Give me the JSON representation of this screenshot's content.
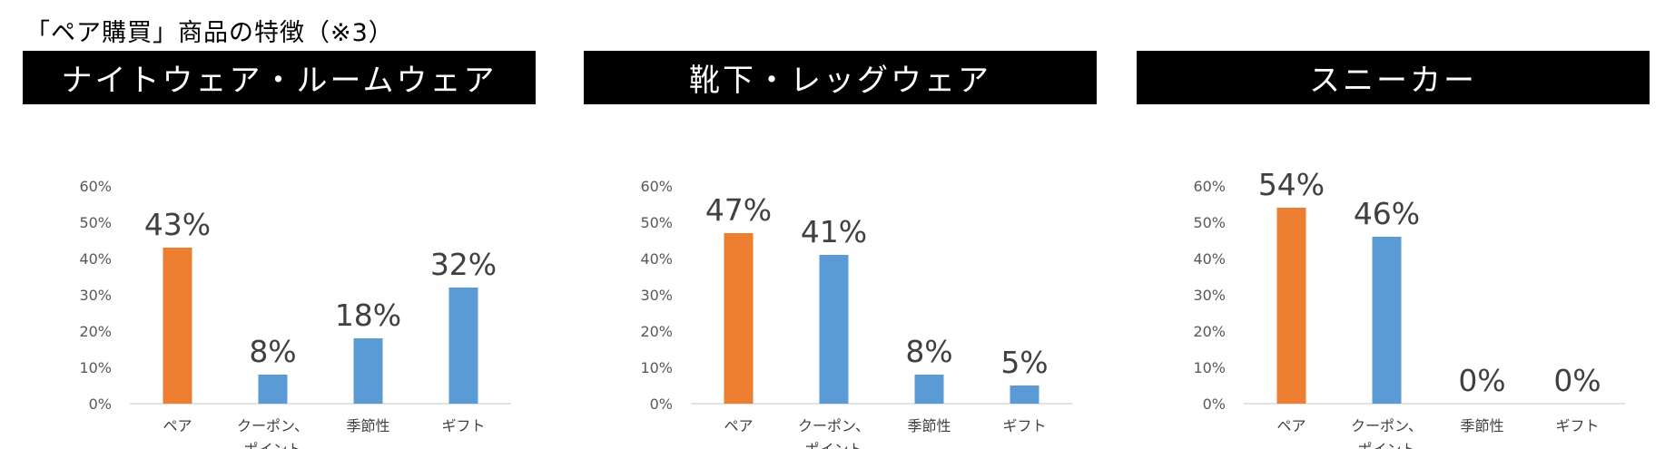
{
  "page_title": "「ペア購買」商品の特徴（※3）",
  "colors": {
    "highlight": "#ED7D31",
    "bar": "#5B9BD5",
    "header_bg": "#000000",
    "axis": "#D9D9D9"
  },
  "chart_data": [
    {
      "type": "bar",
      "title": "ナイトウェア・ルームウェア",
      "categories": [
        [
          "ペア"
        ],
        [
          "クーポン、",
          "ポイント"
        ],
        [
          "季節性"
        ],
        [
          "ギフト"
        ]
      ],
      "values": [
        43,
        8,
        18,
        32
      ],
      "value_labels": [
        "43%",
        "8%",
        "18%",
        "32%"
      ],
      "highlight_index": 0,
      "ylim": [
        0,
        60
      ],
      "yticks": [
        "0%",
        "10%",
        "20%",
        "30%",
        "40%",
        "50%",
        "60%"
      ],
      "grid": false,
      "legend": "none"
    },
    {
      "type": "bar",
      "title": "靴下・レッグウェア",
      "categories": [
        [
          "ペア"
        ],
        [
          "クーポン、",
          "ポイント"
        ],
        [
          "季節性"
        ],
        [
          "ギフト"
        ]
      ],
      "values": [
        47,
        41,
        8,
        5
      ],
      "value_labels": [
        "47%",
        "41%",
        "8%",
        "5%"
      ],
      "highlight_index": 0,
      "ylim": [
        0,
        60
      ],
      "yticks": [
        "0%",
        "10%",
        "20%",
        "30%",
        "40%",
        "50%",
        "60%"
      ],
      "grid": false,
      "legend": "none"
    },
    {
      "type": "bar",
      "title": "スニーカー",
      "categories": [
        [
          "ペア"
        ],
        [
          "クーポン、",
          "ポイント"
        ],
        [
          "季節性"
        ],
        [
          "ギフト"
        ]
      ],
      "values": [
        54,
        46,
        0,
        0
      ],
      "value_labels": [
        "54%",
        "46%",
        "0%",
        "0%"
      ],
      "highlight_index": 0,
      "ylim": [
        0,
        60
      ],
      "yticks": [
        "0%",
        "10%",
        "20%",
        "30%",
        "40%",
        "50%",
        "60%"
      ],
      "grid": false,
      "legend": "none"
    }
  ]
}
